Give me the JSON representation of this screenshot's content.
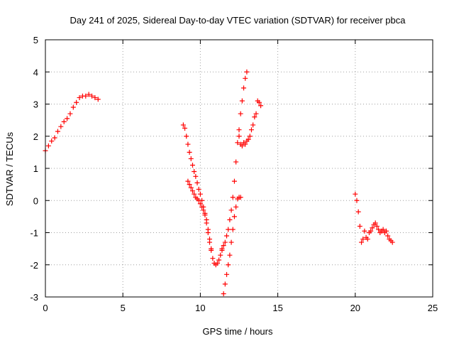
{
  "chart_data": {
    "type": "scatter",
    "title": "Day 241 of 2025, Sidereal Day-to-day VTEC variation (SDTVAR) for receiver pbca",
    "xlabel": "GPS time / hours",
    "ylabel": "SDTVAR / TECUs",
    "xlim": [
      0,
      25
    ],
    "ylim": [
      -3,
      5
    ],
    "xticks": [
      "0",
      "5",
      "10",
      "15",
      "20",
      "25"
    ],
    "yticks": [
      "-3",
      "-2",
      "-1",
      "0",
      "1",
      "2",
      "3",
      "4",
      "5"
    ],
    "grid": true,
    "marker": "plus",
    "color": "#ff0000",
    "segments": [
      {
        "x": [
          0.0,
          0.2,
          0.4,
          0.6,
          0.8,
          1.0,
          1.2,
          1.4,
          1.6,
          1.8,
          2.0,
          2.2,
          2.4,
          2.6,
          2.8,
          3.0,
          3.2,
          3.4
        ],
        "y": [
          1.55,
          1.7,
          1.85,
          1.95,
          2.15,
          2.3,
          2.45,
          2.55,
          2.7,
          2.9,
          3.05,
          3.2,
          3.25,
          3.25,
          3.3,
          3.25,
          3.2,
          3.15
        ]
      },
      {
        "x": [
          8.9,
          9.0,
          9.1,
          9.2,
          9.3,
          9.4,
          9.5,
          9.6,
          9.7,
          9.8,
          9.9,
          10.0,
          10.1,
          10.2,
          10.3,
          10.4,
          10.5,
          10.6,
          10.7,
          10.8,
          10.9,
          11.0,
          11.1,
          11.2,
          11.3,
          11.4
        ],
        "y": [
          2.35,
          2.25,
          2.0,
          1.75,
          1.5,
          1.3,
          1.1,
          0.9,
          0.75,
          0.55,
          0.35,
          0.2,
          0.0,
          -0.2,
          -0.4,
          -0.7,
          -1.0,
          -1.3,
          -1.55,
          -1.8,
          -1.95,
          -2.0,
          -1.95,
          -1.85,
          -1.7,
          -1.55
        ]
      },
      {
        "x": [
          9.2,
          9.3,
          9.4,
          9.5,
          9.6,
          9.7,
          9.8,
          9.9,
          10.0,
          10.1,
          10.2,
          10.3,
          10.4,
          10.5,
          10.6,
          10.7
        ],
        "y": [
          0.6,
          0.5,
          0.4,
          0.3,
          0.2,
          0.1,
          0.05,
          0.0,
          -0.1,
          -0.2,
          -0.3,
          -0.45,
          -0.6,
          -0.9,
          -1.2,
          -1.5
        ]
      },
      {
        "x": [
          11.4,
          11.5,
          11.6,
          11.7,
          11.8,
          11.9,
          12.0,
          12.1,
          12.2,
          12.3,
          12.4,
          12.5,
          12.6,
          12.7,
          12.8,
          12.9,
          13.0
        ],
        "y": [
          -1.5,
          -1.4,
          -1.3,
          -1.1,
          -0.9,
          -0.6,
          -0.3,
          0.1,
          0.6,
          1.2,
          1.8,
          2.2,
          2.7,
          3.1,
          3.5,
          3.8,
          4.0
        ]
      },
      {
        "x": [
          11.5,
          11.6,
          11.7,
          11.8,
          11.9,
          12.0,
          12.1,
          12.2,
          12.3,
          12.4,
          12.5,
          12.6
        ],
        "y": [
          -2.9,
          -2.6,
          -2.3,
          -2.0,
          -1.7,
          -1.3,
          -0.9,
          -0.5,
          -0.2,
          0.05,
          0.1,
          0.1
        ]
      },
      {
        "x": [
          12.5,
          12.6,
          12.7,
          12.8,
          12.9,
          13.0,
          13.1,
          13.2,
          13.3,
          13.4,
          13.5,
          13.6,
          13.7,
          13.8,
          13.9
        ],
        "y": [
          2.0,
          1.75,
          1.7,
          1.8,
          1.75,
          1.85,
          1.9,
          2.0,
          2.2,
          2.35,
          2.6,
          2.7,
          3.1,
          3.05,
          2.95
        ]
      },
      {
        "x": [
          20.0,
          20.1,
          20.2,
          20.3,
          20.4,
          20.5,
          20.6,
          20.7,
          20.8,
          20.9,
          21.0,
          21.1,
          21.2,
          21.3,
          21.4,
          21.5,
          21.6,
          21.7,
          21.8,
          21.9,
          22.0,
          22.1,
          22.2,
          22.3,
          22.4
        ],
        "y": [
          0.2,
          0.0,
          -0.35,
          -0.8,
          -1.3,
          -1.2,
          -0.95,
          -1.15,
          -1.2,
          -1.0,
          -0.95,
          -0.85,
          -0.75,
          -0.7,
          -0.8,
          -0.9,
          -1.0,
          -0.95,
          -0.9,
          -1.0,
          -0.95,
          -1.1,
          -1.2,
          -1.25,
          -1.3
        ]
      }
    ]
  }
}
